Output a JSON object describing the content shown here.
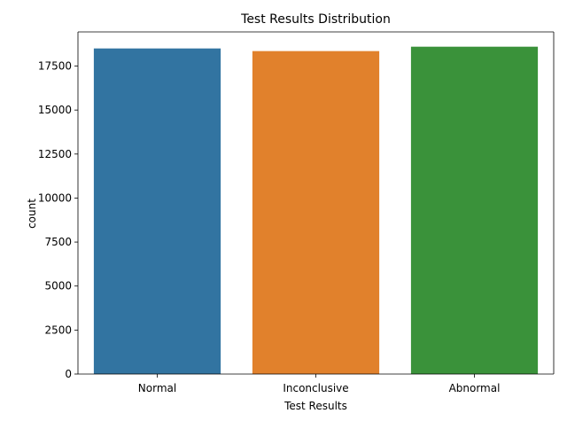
{
  "chart_data": {
    "type": "bar",
    "title": "Test Results Distribution",
    "xlabel": "Test Results",
    "ylabel": "count",
    "categories": [
      "Normal",
      "Inconclusive",
      "Abnormal"
    ],
    "values": [
      18500,
      18350,
      18600
    ],
    "colors": [
      "#3274a1",
      "#e1812c",
      "#3a923a"
    ],
    "ylim": [
      0,
      19440
    ],
    "yticks": [
      0,
      2500,
      5000,
      7500,
      10000,
      12500,
      15000,
      17500
    ],
    "ytick_labels": [
      "0",
      "2500",
      "5000",
      "7500",
      "10000",
      "12500",
      "15000",
      "17500"
    ],
    "grid": false,
    "legend": "none"
  }
}
